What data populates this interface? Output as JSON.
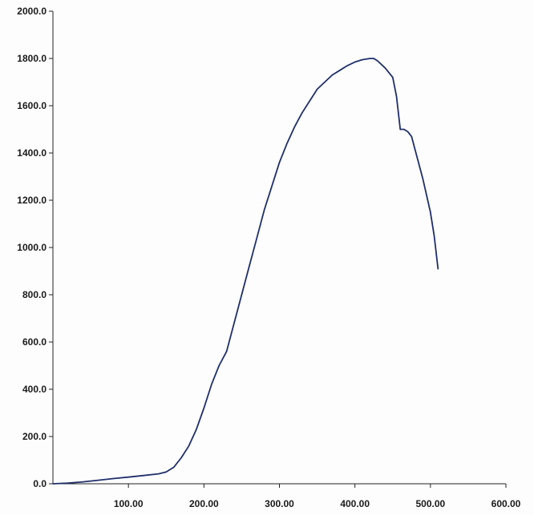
{
  "chart_data": {
    "type": "line",
    "title": "",
    "xlabel": "",
    "ylabel": "",
    "xlim": [
      0,
      600
    ],
    "ylim": [
      0,
      2000
    ],
    "x_ticks": [
      100,
      200,
      300,
      400,
      500,
      600
    ],
    "x_tick_labels": [
      "100.00",
      "200.00",
      "300.00",
      "400.00",
      "500.00",
      "600.00"
    ],
    "y_ticks": [
      0,
      200,
      400,
      600,
      800,
      1000,
      1200,
      1400,
      1600,
      1800,
      2000
    ],
    "y_tick_labels": [
      "0.0",
      "200.0",
      "400.0",
      "600.0",
      "800.0",
      "1000.0",
      "1200.0",
      "1400.0",
      "1600.0",
      "1800.0",
      "2000.0"
    ],
    "grid": false,
    "legend": "none",
    "line_color": "#1f2f6b",
    "series": [
      {
        "x": [
          0,
          20,
          40,
          60,
          80,
          100,
          120,
          140,
          150,
          160,
          170,
          180,
          190,
          200,
          210,
          220,
          230,
          240,
          250,
          260,
          270,
          280,
          290,
          300,
          310,
          320,
          330,
          340,
          350,
          360,
          370,
          380,
          390,
          400,
          410,
          420,
          425,
          430,
          440,
          450,
          455,
          460,
          465,
          470,
          475,
          480,
          490,
          500,
          505,
          510
        ],
        "y": [
          0,
          3,
          8,
          15,
          22,
          28,
          35,
          42,
          50,
          70,
          110,
          160,
          230,
          320,
          420,
          500,
          560,
          680,
          800,
          920,
          1040,
          1160,
          1260,
          1360,
          1440,
          1510,
          1570,
          1620,
          1670,
          1700,
          1730,
          1750,
          1770,
          1785,
          1795,
          1800,
          1800,
          1790,
          1760,
          1720,
          1640,
          1500,
          1500,
          1490,
          1470,
          1410,
          1290,
          1150,
          1050,
          910
        ]
      }
    ]
  }
}
